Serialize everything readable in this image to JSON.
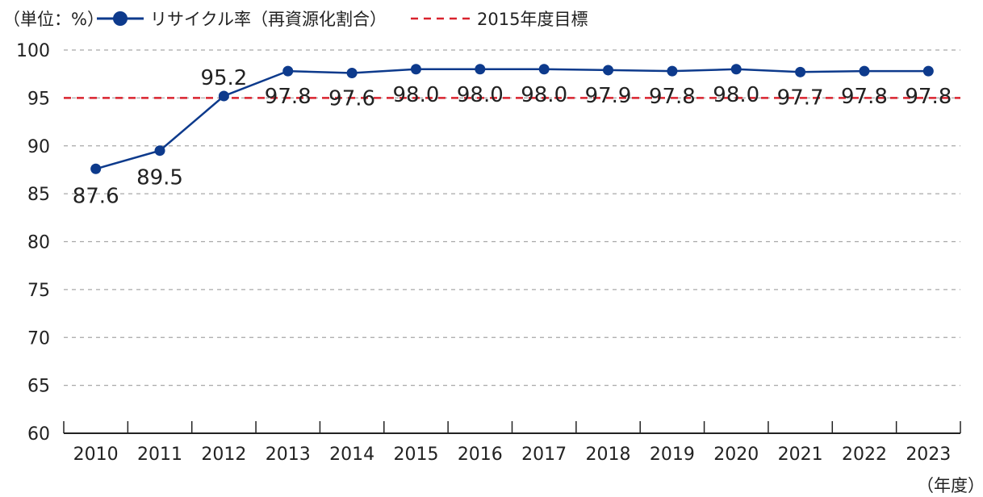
{
  "unit_label": "（単位：%）",
  "legend": {
    "recycle_label": "リサイクル率（再資源化割合）",
    "target_label": "2015年度目標"
  },
  "x_unit_label": "（年度）",
  "colors": {
    "series": "#0d3a8c",
    "target": "#d9232e",
    "grid": "#a8a8a8",
    "axis": "#222222"
  },
  "chart_data": {
    "type": "line",
    "categories": [
      "2010",
      "2011",
      "2012",
      "2013",
      "2014",
      "2015",
      "2016",
      "2017",
      "2018",
      "2019",
      "2020",
      "2021",
      "2022",
      "2023"
    ],
    "series": [
      {
        "name": "リサイクル率（再資源化割合）",
        "values": [
          87.6,
          89.5,
          95.2,
          97.8,
          97.6,
          98.0,
          98.0,
          98.0,
          97.9,
          97.8,
          98.0,
          97.7,
          97.8,
          97.8
        ]
      }
    ],
    "data_labels": [
      "87.6",
      "89.5",
      "95.2",
      "97.8",
      "97.6",
      "98.0",
      "98.0",
      "98.0",
      "97.9",
      "97.8",
      "98.0",
      "97.7",
      "97.8",
      "97.8"
    ],
    "target": {
      "name": "2015年度目標",
      "value": 95
    },
    "yticks": [
      "100",
      "95",
      "90",
      "85",
      "80",
      "75",
      "70",
      "65",
      "60"
    ],
    "ylim": [
      60,
      100
    ],
    "xlabel": "（年度）",
    "ylabel": "（単位：%）",
    "grid": true,
    "legend_position": "top"
  }
}
